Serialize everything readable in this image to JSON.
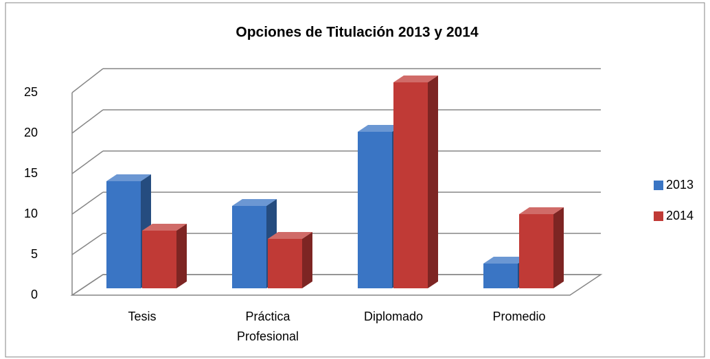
{
  "chart_data": {
    "type": "bar3d",
    "title": "Opciones de Titulación 2013 y 2014",
    "categories": [
      "Tesis",
      "Práctica Profesional",
      "Diplomado",
      "Promedio"
    ],
    "series": [
      {
        "name": "2013",
        "color": "#3a75c4",
        "values": [
          13,
          10,
          19,
          3
        ]
      },
      {
        "name": "2014",
        "color": "#c03a36",
        "values": [
          7,
          6,
          25,
          9
        ]
      }
    ],
    "ylim": [
      0,
      25
    ],
    "yticks": [
      0,
      5,
      10,
      15,
      20,
      25
    ],
    "grid": true,
    "legend": "right"
  }
}
